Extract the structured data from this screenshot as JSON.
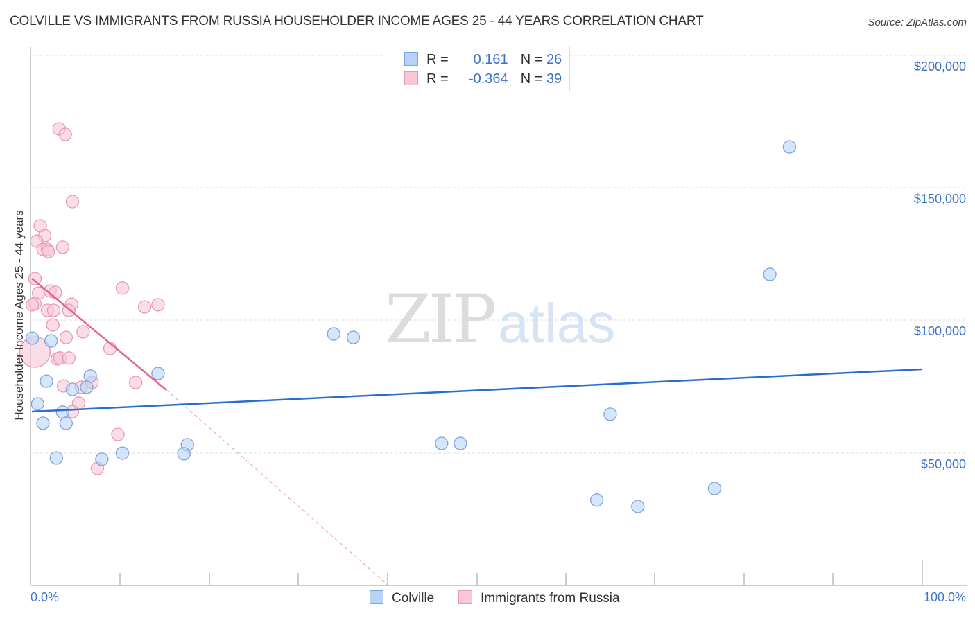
{
  "title": "COLVILLE VS IMMIGRANTS FROM RUSSIA HOUSEHOLDER INCOME AGES 25 - 44 YEARS CORRELATION CHART",
  "source": "Source: ZipAtlas.com",
  "watermark": {
    "zip": "ZIP",
    "atlas": "atlas"
  },
  "y_axis": {
    "label": "Householder Income Ages 25 - 44 years",
    "ticks": [
      "$200,000",
      "$150,000",
      "$100,000",
      "$50,000"
    ]
  },
  "x_axis": {
    "min_label": "0.0%",
    "max_label": "100.0%"
  },
  "legend_top": {
    "rows": [
      {
        "r_label": "R =",
        "r_value": "0.161",
        "n_label": "N =",
        "n_value": "26"
      },
      {
        "r_label": "R =",
        "r_value": "-0.364",
        "n_label": "N =",
        "n_value": "39"
      }
    ]
  },
  "legend_bottom": {
    "items": [
      {
        "label": "Colville"
      },
      {
        "label": "Immigrants from Russia"
      }
    ]
  },
  "colors": {
    "blue_fill": "#b9d3f6",
    "blue_stroke": "#7aa4de",
    "blue_line": "#2a6dd0",
    "pink_fill": "#f9c6d6",
    "pink_stroke": "#e99ab2",
    "pink_line": "#e0658e",
    "tick_text": "#3b73c8"
  },
  "chart_data": {
    "type": "scatter",
    "title": "COLVILLE VS IMMIGRANTS FROM RUSSIA HOUSEHOLDER INCOME AGES 25 - 44 YEARS CORRELATION CHART",
    "xlabel": "",
    "ylabel": "Householder Income Ages 25 - 44 years",
    "xlim": [
      0,
      100
    ],
    "ylim": [
      0,
      200000
    ],
    "x_tick_labels": [
      "0.0%",
      "100.0%"
    ],
    "y_tick_labels": [
      "$50,000",
      "$100,000",
      "$150,000",
      "$200,000"
    ],
    "grid": true,
    "legend_position": "bottom",
    "series": [
      {
        "name": "Colville",
        "r": 0.161,
        "n": 26,
        "points": [
          [
            0.2,
            93300
          ],
          [
            2.3,
            92300
          ],
          [
            1.8,
            77100
          ],
          [
            6.7,
            79000
          ],
          [
            4.7,
            74000
          ],
          [
            6.3,
            74800
          ],
          [
            14.3,
            80000
          ],
          [
            0.8,
            68500
          ],
          [
            3.6,
            65400
          ],
          [
            1.4,
            61200
          ],
          [
            4.0,
            61200
          ],
          [
            2.9,
            48100
          ],
          [
            8.0,
            47600
          ],
          [
            10.3,
            49900
          ],
          [
            17.6,
            53100
          ],
          [
            17.2,
            49700
          ],
          [
            34.0,
            94900
          ],
          [
            36.2,
            93600
          ],
          [
            46.1,
            53600
          ],
          [
            48.2,
            53600
          ],
          [
            65.0,
            64600
          ],
          [
            63.5,
            32200
          ],
          [
            68.1,
            29800
          ],
          [
            76.7,
            36600
          ],
          [
            82.9,
            117400
          ],
          [
            85.1,
            165500
          ]
        ],
        "trend": {
          "x": [
            0.2,
            100
          ],
          "y": [
            65500,
            81400
          ]
        }
      },
      {
        "name": "Immigrants from Russia",
        "r": -0.364,
        "n": 39,
        "points": [
          [
            3.2,
            172300
          ],
          [
            3.9,
            170200
          ],
          [
            4.7,
            144800
          ],
          [
            1.1,
            135700
          ],
          [
            1.6,
            132000
          ],
          [
            0.7,
            129900
          ],
          [
            3.6,
            127600
          ],
          [
            1.4,
            126800
          ],
          [
            1.9,
            126800
          ],
          [
            0.5,
            115800
          ],
          [
            0.9,
            110300
          ],
          [
            2.2,
            111100
          ],
          [
            2.8,
            110600
          ],
          [
            0.5,
            106400
          ],
          [
            1.9,
            103800
          ],
          [
            2.6,
            103800
          ],
          [
            4.6,
            106100
          ],
          [
            4.3,
            103800
          ],
          [
            10.3,
            112200
          ],
          [
            12.8,
            105100
          ],
          [
            14.3,
            105900
          ],
          [
            2.5,
            98300
          ],
          [
            5.9,
            95700
          ],
          [
            4.0,
            93600
          ],
          [
            0.5,
            88100
          ],
          [
            3.0,
            85500
          ],
          [
            3.3,
            85800
          ],
          [
            4.3,
            85800
          ],
          [
            8.9,
            89400
          ],
          [
            3.7,
            75300
          ],
          [
            5.7,
            74800
          ],
          [
            6.9,
            76600
          ],
          [
            11.8,
            76600
          ],
          [
            5.4,
            68800
          ],
          [
            4.7,
            65600
          ],
          [
            9.8,
            57000
          ],
          [
            7.5,
            44200
          ],
          [
            0.2,
            105900
          ],
          [
            2.0,
            126000
          ]
        ],
        "trend": {
          "x": [
            0.2,
            15.2
          ],
          "y": [
            115800,
            73700
          ]
        },
        "trend_extension_dashed": {
          "x": [
            15.2,
            40.1
          ],
          "y": [
            73700,
            0
          ]
        }
      }
    ]
  }
}
